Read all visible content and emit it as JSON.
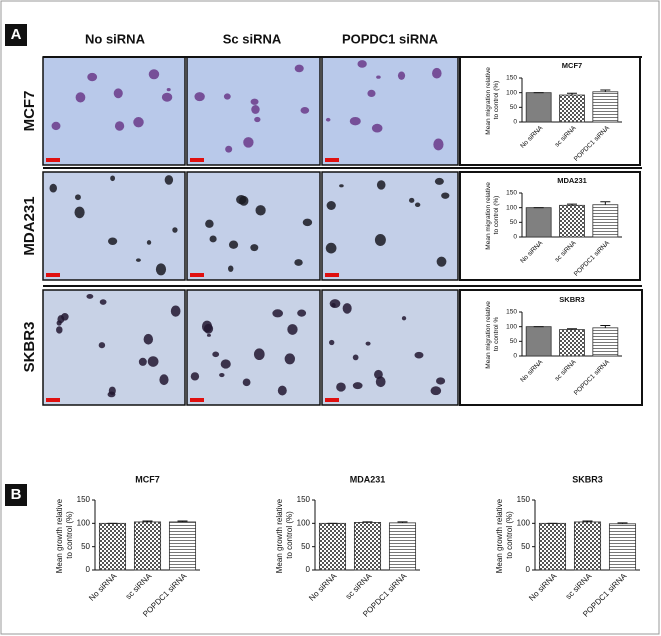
{
  "panels": {
    "label_a": "A",
    "label_b": "B",
    "columns": [
      "No siRNA",
      "Sc siRNA",
      "POPDC1 siRNA"
    ],
    "rows": [
      "MCF7",
      "MDA231",
      "SKBR3"
    ]
  },
  "chart_data": [
    {
      "type": "bar",
      "title": "MCF7",
      "ylabel": "Mean migration relative to control (%)",
      "categories": [
        "No siRNA",
        "sc siRNA",
        "POPDC1 siRNA"
      ],
      "values": [
        100,
        92,
        103
      ],
      "errors": [
        0,
        6,
        6
      ],
      "fills": [
        "solid",
        "checker",
        "stripes"
      ],
      "ylim": [
        0,
        150
      ],
      "yticks": [
        0,
        50,
        100,
        150
      ]
    },
    {
      "type": "bar",
      "title": "MDA231",
      "ylabel": "Mean migration relative to control (%)",
      "categories": [
        "No siRNA",
        "sc siRNA",
        "POPDC1 siRNA"
      ],
      "values": [
        100,
        108,
        110
      ],
      "errors": [
        0,
        4,
        10
      ],
      "fills": [
        "solid",
        "checker",
        "stripes"
      ],
      "ylim": [
        0,
        150
      ],
      "yticks": [
        0,
        50,
        100,
        150
      ]
    },
    {
      "type": "bar",
      "title": "SKBR3",
      "ylabel": "Mean migration relative to control %",
      "categories": [
        "No siRNA",
        "sc siRNA",
        "POPDC1 siRNA"
      ],
      "values": [
        100,
        90,
        96
      ],
      "errors": [
        0,
        3,
        8
      ],
      "fills": [
        "solid",
        "checker",
        "stripes"
      ],
      "ylim": [
        0,
        150
      ],
      "yticks": [
        0,
        50,
        100,
        150
      ]
    },
    {
      "type": "bar",
      "title": "MCF7",
      "ylabel": "Mean growth relative to control (%)",
      "categories": [
        "No siRNA",
        "sc siRNA",
        "POPDC1 siRNA"
      ],
      "values": [
        100,
        103,
        103
      ],
      "errors": [
        0,
        2,
        2
      ],
      "fills": [
        "checker",
        "checker",
        "stripes"
      ],
      "ylim": [
        0,
        150
      ],
      "yticks": [
        0,
        50,
        100,
        150
      ]
    },
    {
      "type": "bar",
      "title": "MDA231",
      "ylabel": "Mean growth relative to control (%)",
      "categories": [
        "No siRNA",
        "sc siRNA",
        "POPDC1 siRNA"
      ],
      "values": [
        100,
        102,
        101
      ],
      "errors": [
        0,
        1,
        2
      ],
      "fills": [
        "checker",
        "checker",
        "stripes"
      ],
      "ylim": [
        0,
        150
      ],
      "yticks": [
        0,
        50,
        100,
        150
      ]
    },
    {
      "type": "bar",
      "title": "SKBR3",
      "ylabel": "Mean growth relative to control (%)",
      "categories": [
        "No siRNA",
        "sc siRNA",
        "POPDC1 siRNA"
      ],
      "values": [
        100,
        103,
        99
      ],
      "errors": [
        0,
        2,
        2
      ],
      "fills": [
        "checker",
        "checker",
        "stripes"
      ],
      "ylim": [
        0,
        150
      ],
      "yticks": [
        0,
        50,
        100,
        150
      ]
    }
  ]
}
